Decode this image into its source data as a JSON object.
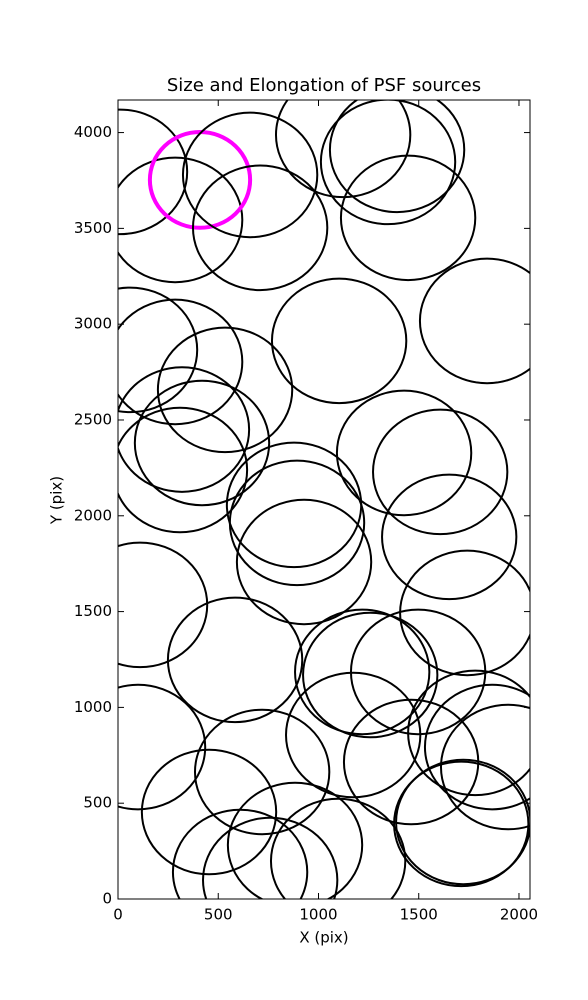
{
  "chart_data": {
    "type": "ellipse",
    "title": "Size and Elongation of PSF sources",
    "xlabel": "X (pix)",
    "ylabel": "Y (pix)",
    "xlim": [
      0,
      2055
    ],
    "ylim": [
      0,
      4170
    ],
    "xticks": [
      0,
      500,
      1000,
      1500,
      2000
    ],
    "yticks": [
      0,
      500,
      1000,
      1500,
      2000,
      2500,
      3000,
      3500,
      4000
    ],
    "x": [
      10,
      285,
      409,
      659,
      709,
      1123,
      1347,
      1392,
      1447,
      1841,
      1103,
      60,
      285,
      534,
      319,
      419,
      309,
      1427,
      1607,
      878,
      893,
      928,
      1652,
      1742,
      110,
      584,
      1218,
      1258,
      1497,
      100,
      719,
      1173,
      1462,
      1782,
      1866,
      1946,
      454,
      609,
      759,
      1098,
      883,
      1712,
      1722
    ],
    "y": [
      3795,
      3544,
      3753,
      3779,
      3503,
      3988,
      3847,
      3910,
      3555,
      3017,
      2913,
      2866,
      2803,
      2657,
      2450,
      2380,
      2239,
      2328,
      2229,
      2057,
      1963,
      1759,
      1890,
      1493,
      1535,
      1248,
      1185,
      1169,
      1185,
      793,
      663,
      856,
      715,
      867,
      793,
      689,
      454,
      141,
      99,
      198,
      282,
      392,
      402
    ],
    "width": [
      670,
      670,
      500,
      670,
      670,
      670,
      670,
      670,
      670,
      670,
      670,
      670,
      670,
      670,
      670,
      670,
      670,
      670,
      670,
      670,
      670,
      670,
      670,
      670,
      670,
      670,
      670,
      670,
      670,
      670,
      670,
      670,
      670,
      670,
      670,
      670,
      670,
      670,
      670,
      670,
      670,
      670,
      670
    ],
    "height": [
      650,
      650,
      500,
      650,
      650,
      650,
      650,
      650,
      650,
      650,
      650,
      650,
      650,
      650,
      650,
      650,
      650,
      650,
      650,
      650,
      650,
      650,
      650,
      650,
      650,
      650,
      650,
      650,
      650,
      650,
      650,
      650,
      650,
      650,
      650,
      650,
      650,
      650,
      650,
      650,
      650,
      650,
      650
    ],
    "colors": [
      "#000000",
      "#000000",
      "#ff00ff",
      "#000000",
      "#000000",
      "#000000",
      "#000000",
      "#000000",
      "#000000",
      "#000000",
      "#000000",
      "#000000",
      "#000000",
      "#000000",
      "#000000",
      "#000000",
      "#000000",
      "#000000",
      "#000000",
      "#000000",
      "#000000",
      "#000000",
      "#000000",
      "#000000",
      "#000000",
      "#000000",
      "#000000",
      "#000000",
      "#000000",
      "#000000",
      "#000000",
      "#000000",
      "#000000",
      "#000000",
      "#000000",
      "#000000",
      "#000000",
      "#000000",
      "#000000",
      "#000000",
      "#000000",
      "#000000",
      "#000000"
    ]
  }
}
